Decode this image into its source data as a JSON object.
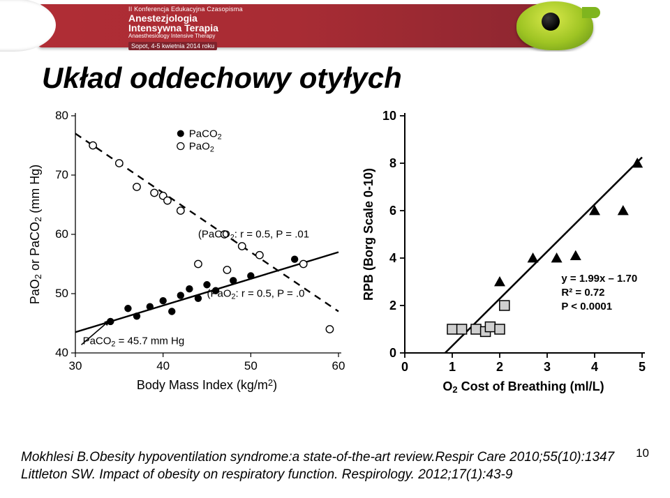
{
  "banner": {
    "line1": "II Konferencja Edukacyjna Czasopisma",
    "line2": "Anestezjologia",
    "line3": "Intensywna Terapia",
    "line4": "Anaesthesiology Intensive Therapy",
    "line5": "Sopot, 4-5 kwietnia 2014 roku"
  },
  "title": "Układ oddechowy otyłych",
  "chart_left": {
    "type": "scatter",
    "xlabel": "Body Mass Index (kg/m²)",
    "ylabel": "PaO₂ or PaCO₂ (mm Hg)",
    "xlim": [
      30,
      60
    ],
    "xtick_step": 10,
    "ylim": [
      40,
      80
    ],
    "ytick_step": 10,
    "legend": {
      "filled": "PaCO₂",
      "open": "PaO₂"
    },
    "annotation_paco2": "(PaCO₂: r = 0.5, P = .01",
    "annotation_pao2": "(PaO₂: r = 0.5, P = .0",
    "arrow_label": "PaCO₂ = 45.7 mm Hg",
    "paco2_points": [
      [
        34,
        45.3
      ],
      [
        36,
        47.5
      ],
      [
        37,
        46.2
      ],
      [
        38.5,
        47.8
      ],
      [
        40,
        48.8
      ],
      [
        41,
        47.0
      ],
      [
        42,
        49.7
      ],
      [
        43,
        50.8
      ],
      [
        44,
        49.2
      ],
      [
        45,
        51.5
      ],
      [
        46,
        50.5
      ],
      [
        48,
        52.2
      ],
      [
        50,
        53.0
      ],
      [
        55,
        55.8
      ]
    ],
    "pao2_points": [
      [
        32,
        75
      ],
      [
        35,
        72
      ],
      [
        37,
        68
      ],
      [
        39,
        67
      ],
      [
        40,
        66.5
      ],
      [
        40.5,
        65.7
      ],
      [
        42,
        64
      ],
      [
        44,
        55
      ],
      [
        47,
        60
      ],
      [
        47.3,
        54
      ],
      [
        49,
        58
      ],
      [
        51,
        56.5
      ],
      [
        56,
        55
      ],
      [
        59,
        44
      ]
    ],
    "paco2_line": {
      "x1": 30,
      "y1": 43.5,
      "x2": 60,
      "y2": 57.0,
      "dash": false
    },
    "pao2_line": {
      "x1": 30,
      "y1": 77.0,
      "x2": 60,
      "y2": 47.0,
      "dash": true
    },
    "colors": {
      "stroke": "#000000",
      "fill_filled": "#000000",
      "fill_open": "#ffffff"
    }
  },
  "chart_right": {
    "type": "scatter",
    "xlabel": "O₂ Cost of Breathing (ml/L)",
    "ylabel": "RPB (Borg Scale 0-10)",
    "xlim": [
      0,
      5
    ],
    "xtick_step": 1,
    "ylim": [
      0,
      10
    ],
    "ytick_step": 2,
    "eq_lines": [
      "y = 1.99x – 1.70",
      "R² = 0.72",
      "P < 0.0001"
    ],
    "fit_line": {
      "x1": 0.85,
      "y1": 0.0,
      "x2": 5.0,
      "y2": 8.25
    },
    "triangles": [
      [
        2.0,
        3.0
      ],
      [
        2.7,
        4.0
      ],
      [
        3.2,
        4.0
      ],
      [
        3.6,
        4.1
      ],
      [
        4.0,
        6.0
      ],
      [
        4.6,
        6.0
      ],
      [
        4.9,
        8.0
      ]
    ],
    "squares": [
      [
        1.0,
        1.0
      ],
      [
        1.2,
        1.0
      ],
      [
        1.5,
        1.0
      ],
      [
        1.7,
        0.9
      ],
      [
        1.8,
        1.1
      ],
      [
        2.0,
        1.0
      ],
      [
        2.1,
        2.0
      ]
    ],
    "colors": {
      "stroke": "#000000",
      "triangle_fill": "#000000",
      "square_fill": "#cfcfcf"
    }
  },
  "refs": {
    "line1": "Mokhlesi B.Obesity hypoventilation syndrome:a state-of-the-art review.Respir Care 2010;55(10):1347",
    "line2": "Littleton SW. Impact of obesity on respiratory function. Respirology. 2012;17(1):43-9"
  },
  "page_number": "10"
}
